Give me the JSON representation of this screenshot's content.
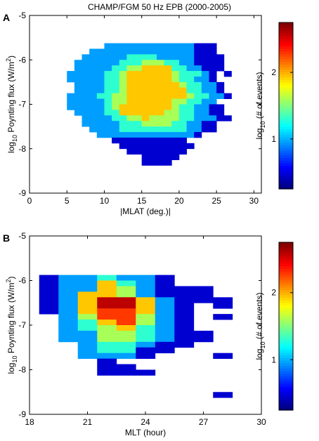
{
  "chart_data": [
    {
      "panel": "A",
      "type": "heatmap",
      "title": "CHAMP/FGM 50 Hz EPB (2000-2005)",
      "xlabel": "|MLAT (deg.)|",
      "ylabel_main": "log",
      "ylabel_sub": "10",
      "ylabel_rest": " Poynting flux (W/m",
      "ylabel_sup": "2",
      "ylabel_end": ")",
      "xlim": [
        0,
        31
      ],
      "ylim": [
        -9,
        -5
      ],
      "xticks": [
        0,
        5,
        10,
        15,
        20,
        25,
        30
      ],
      "yticks": [
        -9,
        -8,
        -7,
        -6,
        -5
      ],
      "xtick_labels": [
        "0",
        "5",
        "10",
        "15",
        "20",
        "25",
        "30"
      ],
      "ytick_labels": [
        "-9",
        "-8",
        "-7",
        "-6",
        "-5"
      ],
      "cell_x_width": 1,
      "cell_y_height": 0.125,
      "x_start": 5,
      "y_start": -8.375,
      "colorbar": {
        "range": [
          0.25,
          2.75
        ],
        "ticks": [
          1,
          2
        ],
        "tick_labels": [
          "1",
          "2"
        ],
        "label_main": "log",
        "label_sub": "10",
        "label_rest": " (# of events)"
      },
      "grid": [
        ".....222222222222111..",
        "...22222222222222111..",
        "..2222223333222221111.",
        ".22222233344433221111.",
        ".22222334455553322111.",
        "22222334555555433321.1",
        "22222334555555433221..",
        ".22223345555555433221.",
        ".22223345555555533221.",
        "2222334455555555433221",
        "22222344555555443322..",
        "222223455555554332211.",
        ".22223355555544332211.",
        "..22223344544443322211",
        "..222223334444332211..",
        "...22223333333332211..",
        "....22222222222221....",
        "......1111111111......",
        ".......1111111111.....",
        "........11111111......",
        "..........11111.......",
        "..........1111........"
      ]
    },
    {
      "panel": "B",
      "type": "heatmap",
      "title": "",
      "xlabel": "MLT (hour)",
      "ylabel_main": "log",
      "ylabel_sub": "10",
      "ylabel_rest": " Poynting flux (W/m",
      "ylabel_sup": "2",
      "ylabel_end": ")",
      "xlim": [
        18,
        30
      ],
      "ylim": [
        -9,
        -5
      ],
      "xticks": [
        18,
        21,
        24,
        27,
        30
      ],
      "yticks": [
        -9,
        -8,
        -7,
        -6,
        -5
      ],
      "xtick_labels": [
        "18",
        "21",
        "24",
        "27",
        "30"
      ],
      "ytick_labels": [
        "-9",
        "-8",
        "-7",
        "-6",
        "-5"
      ],
      "cell_x_width": 1,
      "cell_y_height": 0.125,
      "x_start": 18.5,
      "y_start": -8.625,
      "colorbar": {
        "range": [
          0.25,
          2.75
        ],
        "ticks": [
          1,
          2
        ],
        "tick_labels": [
          "1",
          "2"
        ],
        "label_main": "log",
        "label_sub": "10",
        "label_rest": " (# of events)"
      },
      "grid": [
        "1223221..",
        "1225321..",
        "122542111",
        "125542111",
        "1257752111",
        "12577521.1",
        "12566521..",
        ".2466421.1",
        ".2356421..",
        ".2345321..",
        ".22443211.",
        ".22443211.",
        "..233211..",
        "..23311...",
        "..2221...1",
        "...1......",
        "...11.....",
        "...111....",
        "..........",
        "..........",
        "..........",
        ".........1"
      ]
    }
  ]
}
